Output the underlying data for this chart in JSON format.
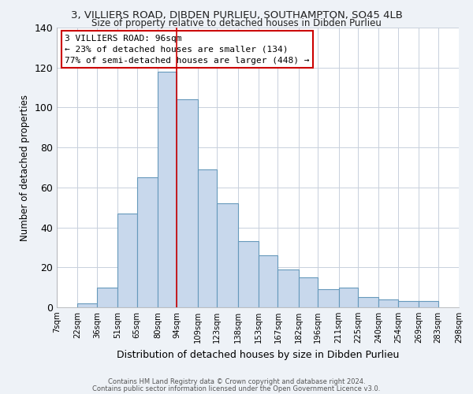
{
  "title_line1": "3, VILLIERS ROAD, DIBDEN PURLIEU, SOUTHAMPTON, SO45 4LB",
  "title_line2": "Size of property relative to detached houses in Dibden Purlieu",
  "xlabel": "Distribution of detached houses by size in Dibden Purlieu",
  "ylabel": "Number of detached properties",
  "bar_left_edges": [
    7,
    22,
    36,
    51,
    65,
    80,
    94,
    109,
    123,
    138,
    153,
    167,
    182,
    196,
    211,
    225,
    240,
    254,
    269,
    283
  ],
  "bar_heights": [
    0,
    2,
    10,
    47,
    65,
    118,
    104,
    69,
    52,
    33,
    26,
    19,
    15,
    9,
    10,
    5,
    4,
    3,
    3,
    0
  ],
  "tick_labels": [
    "7sqm",
    "22sqm",
    "36sqm",
    "51sqm",
    "65sqm",
    "80sqm",
    "94sqm",
    "109sqm",
    "123sqm",
    "138sqm",
    "153sqm",
    "167sqm",
    "182sqm",
    "196sqm",
    "211sqm",
    "225sqm",
    "240sqm",
    "254sqm",
    "269sqm",
    "283sqm",
    "298sqm"
  ],
  "ylim": [
    0,
    140
  ],
  "yticks": [
    0,
    20,
    40,
    60,
    80,
    100,
    120,
    140
  ],
  "bar_color": "#c8d8ec",
  "bar_edgecolor": "#6699bb",
  "bar_linewidth": 0.8,
  "vline_x": 94,
  "vline_color": "#cc0000",
  "vline_linewidth": 1.2,
  "annotation_title": "3 VILLIERS ROAD: 96sqm",
  "annotation_line2": "← 23% of detached houses are smaller (134)",
  "annotation_line3": "77% of semi-detached houses are larger (448) →",
  "footer_line1": "Contains HM Land Registry data © Crown copyright and database right 2024.",
  "footer_line2": "Contains public sector information licensed under the Open Government Licence v3.0.",
  "background_color": "#eef2f7",
  "plot_background": "#ffffff",
  "grid_color": "#c8d0dc"
}
